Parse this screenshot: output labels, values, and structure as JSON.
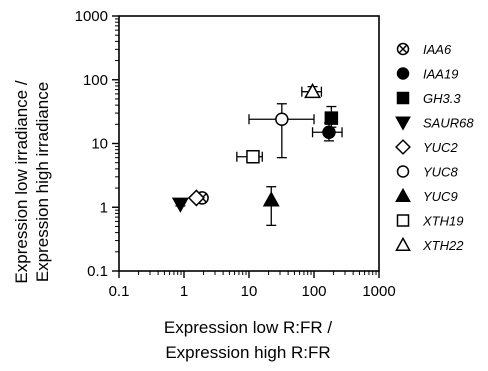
{
  "chart_data": {
    "type": "scatter",
    "x_scale": "log",
    "y_scale": "log",
    "xlim": [
      0.1,
      1000
    ],
    "ylim": [
      0.1,
      1000
    ],
    "grid": false,
    "xlabel": [
      "Expression low R:FR /",
      "Expression high R:FR"
    ],
    "ylabel": [
      "Expression low irradiance /",
      "Expression high irradiance"
    ],
    "x_ticks": [
      0.1,
      1,
      10,
      100,
      1000
    ],
    "x_tick_labels": [
      "0.1",
      "1",
      "10",
      "100",
      "1000"
    ],
    "y_ticks": [
      0.1,
      1,
      10,
      100,
      1000
    ],
    "y_tick_labels": [
      "0.1",
      "1",
      "10",
      "100",
      "1000"
    ],
    "legend_position": "right",
    "series": [
      {
        "name": "IAA6",
        "marker": "circle-x",
        "x": 1.9,
        "y": 1.4,
        "x_err": [
          1.6,
          2.2
        ],
        "y_err": [
          1.25,
          1.55
        ]
      },
      {
        "name": "IAA19",
        "marker": "circle-filled",
        "x": 170,
        "y": 15,
        "x_err": [
          95,
          270
        ],
        "y_err": [
          11,
          21
        ]
      },
      {
        "name": "GH3.3",
        "marker": "square-filled",
        "x": 185,
        "y": 25,
        "x_err": [
          185,
          185
        ],
        "y_err": [
          18,
          38
        ]
      },
      {
        "name": "SAUR68",
        "marker": "triangle-down-filled",
        "x": 0.88,
        "y": 1.12,
        "x_err": [
          0.88,
          0.88
        ],
        "y_err": [
          1.05,
          1.2
        ]
      },
      {
        "name": "YUC2",
        "marker": "diamond-open",
        "x": 1.55,
        "y": 1.4,
        "x_err": [
          1.4,
          1.75
        ],
        "y_err": [
          1.3,
          1.5
        ]
      },
      {
        "name": "YUC8",
        "marker": "circle-open",
        "x": 32,
        "y": 24,
        "x_err": [
          10,
          100
        ],
        "y_err": [
          6,
          42
        ]
      },
      {
        "name": "YUC9",
        "marker": "triangle-up-filled",
        "x": 22,
        "y": 1.3,
        "x_err": [
          22,
          22
        ],
        "y_err": [
          0.52,
          2.1
        ]
      },
      {
        "name": "XTH19",
        "marker": "square-open",
        "x": 11.5,
        "y": 6.2,
        "x_err": [
          6.5,
          16
        ],
        "y_err": [
          6.2,
          6.2
        ]
      },
      {
        "name": "XTH22",
        "marker": "triangle-up-open",
        "x": 95,
        "y": 65,
        "x_err": [
          65,
          130
        ],
        "y_err": [
          55,
          78
        ]
      }
    ]
  }
}
